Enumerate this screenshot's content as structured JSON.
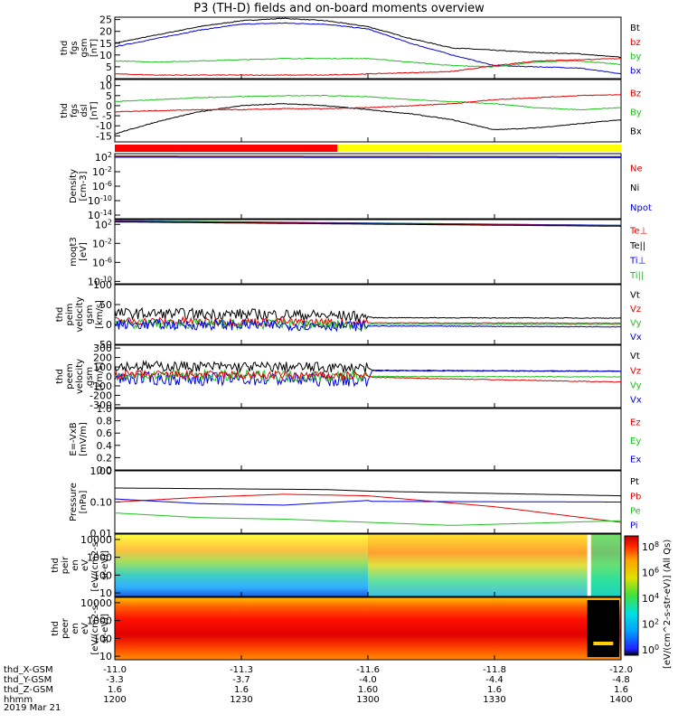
{
  "title": "P3 (TH-D) fields and on-board moments overview",
  "date_label": "2019 Mar 21",
  "colorbar_label": "[eV/(cm^2-s-str-eV)] (All Qs)",
  "colorbar_ticks": [
    "10^8",
    "10^6",
    "10^4",
    "10^2",
    "10^0"
  ],
  "colors": {
    "black": "#000000",
    "red": "#e00000",
    "green": "#20c020",
    "blue": "#0000e0"
  },
  "chart_data": {
    "type": "line",
    "x_time_labels": [
      "1200",
      "1230",
      "1300",
      "1330",
      "1400"
    ],
    "footer": [
      {
        "name": "thd_X-GSM",
        "values": [
          "-11.0",
          "-11.3",
          "-11.6",
          "-11.8",
          "-12.0"
        ]
      },
      {
        "name": "thd_Y-GSM",
        "values": [
          "-3.3",
          "-3.7",
          "-4.0",
          "-4.4",
          "-4.8"
        ]
      },
      {
        "name": "thd_Z-GSM",
        "values": [
          "1.6",
          "1.6",
          "1.60",
          "1.6",
          "1.6"
        ]
      },
      {
        "name": "hhmm",
        "values": [
          "1200",
          "1230",
          "1300",
          "1330",
          "1400"
        ]
      }
    ],
    "panels": [
      {
        "id": "fgs-mag",
        "ylabel": [
          "thd",
          "fgs",
          "gsm",
          "[nT]"
        ],
        "yticks": [
          "25",
          "20",
          "15",
          "10",
          "5",
          "0"
        ],
        "scale": "linear",
        "ylim": [
          0,
          26
        ],
        "legend": [
          {
            "name": "Bt",
            "color": "#000000"
          },
          {
            "name": "bz",
            "color": "#e00000"
          },
          {
            "name": "by",
            "color": "#20c020"
          },
          {
            "name": "bx",
            "color": "#0000e0"
          }
        ],
        "series": [
          {
            "name": "Bt",
            "color": "#000000",
            "x": [
              1200,
              1210,
              1220,
              1230,
              1240,
              1250,
              1300,
              1310,
              1320,
              1330,
              1340,
              1350,
              1400
            ],
            "y": [
              15,
              18.5,
              22,
              24.5,
              25.5,
              24.5,
              22,
              17,
              13,
              12,
              11,
              10.5,
              9
            ]
          },
          {
            "name": "bx",
            "color": "#0000e0",
            "x": [
              1200,
              1210,
              1220,
              1230,
              1240,
              1250,
              1300,
              1310,
              1320,
              1330,
              1340,
              1350,
              1400
            ],
            "y": [
              13.5,
              17,
              20.5,
              23,
              23.5,
              23,
              21,
              15,
              10,
              5.5,
              5,
              4.5,
              2
            ]
          },
          {
            "name": "by",
            "color": "#20c020",
            "x": [
              1200,
              1210,
              1220,
              1230,
              1240,
              1250,
              1300,
              1310,
              1320,
              1330,
              1340,
              1350,
              1400
            ],
            "y": [
              7.5,
              7,
              7.5,
              8,
              8.5,
              8.5,
              8.5,
              7,
              5.5,
              5,
              7,
              7.5,
              6
            ]
          },
          {
            "name": "bz",
            "color": "#e00000",
            "x": [
              1200,
              1210,
              1220,
              1230,
              1240,
              1250,
              1300,
              1310,
              1320,
              1330,
              1340,
              1350,
              1400
            ],
            "y": [
              2,
              1.5,
              1.5,
              1.5,
              1.5,
              1.5,
              2,
              2.5,
              3,
              5.5,
              7.5,
              8,
              8.5
            ]
          }
        ]
      },
      {
        "id": "fgs-dsl",
        "ylabel": [
          "thd",
          "fgs",
          "dsl",
          "[nT]"
        ],
        "yticks": [
          "10",
          "5",
          "0",
          "-5",
          "-10",
          "-15"
        ],
        "scale": "linear",
        "ylim": [
          -18,
          13
        ],
        "legend": [
          {
            "name": "Bz",
            "color": "#e00000"
          },
          {
            "name": "By",
            "color": "#20c020"
          },
          {
            "name": "Bx",
            "color": "#000000"
          }
        ],
        "series": [
          {
            "name": "Bx",
            "color": "#000000",
            "x": [
              1200,
              1210,
              1220,
              1230,
              1240,
              1250,
              1300,
              1310,
              1320,
              1330,
              1340,
              1350,
              1400
            ],
            "y": [
              -14,
              -8,
              -3,
              0,
              1,
              0,
              -2,
              -4,
              -7,
              -12,
              -11,
              -9,
              -7
            ]
          },
          {
            "name": "By",
            "color": "#20c020",
            "x": [
              1200,
              1210,
              1220,
              1230,
              1240,
              1250,
              1300,
              1310,
              1320,
              1330,
              1340,
              1350,
              1400
            ],
            "y": [
              2,
              3,
              4,
              4.5,
              5,
              5,
              4.5,
              3,
              2,
              1,
              -1,
              -2,
              -1
            ]
          },
          {
            "name": "Bz",
            "color": "#e00000",
            "x": [
              1200,
              1210,
              1220,
              1230,
              1240,
              1250,
              1300,
              1310,
              1320,
              1330,
              1340,
              1350,
              1400
            ],
            "y": [
              -3,
              -2.5,
              -2,
              -2,
              -1.5,
              -1.5,
              -1,
              0,
              1,
              3,
              4,
              5,
              5.5
            ]
          }
        ]
      },
      {
        "id": "density",
        "ylabel": [
          "Density",
          "[cm-3]"
        ],
        "yticks": [
          "10^2",
          "10^-2",
          "10^-6",
          "10^-10",
          "10^-14"
        ],
        "scale": "log",
        "ylim": [
          -15,
          3
        ],
        "legend": [
          {
            "name": "Ne",
            "color": "#e00000"
          },
          {
            "name": "Ni",
            "color": "#000000"
          },
          {
            "name": "Npot",
            "color": "#0000e0"
          }
        ],
        "series": [
          {
            "name": "Ni",
            "color": "#000000",
            "x": [
              1200,
              1400
            ],
            "y": [
              2.3,
              2.2
            ]
          },
          {
            "name": "Ne",
            "color": "#e00000",
            "x": [
              1200,
              1400
            ],
            "y": [
              2.2,
              2.1
            ]
          },
          {
            "name": "Npot",
            "color": "#0000e0",
            "x": [
              1200,
              1400
            ],
            "y": [
              2.0,
              1.9
            ]
          }
        ]
      },
      {
        "id": "temp",
        "ylabel": [
          "moqt3",
          "[eV]"
        ],
        "yticks": [
          "10^2",
          "10^-2",
          "10^-6",
          "10^-10"
        ],
        "scale": "log",
        "ylim": [
          -10.5,
          3
        ],
        "legend": [
          {
            "name": "Te⊥",
            "color": "#e00000"
          },
          {
            "name": "Te||",
            "color": "#000000"
          },
          {
            "name": "Ti⊥",
            "color": "#0000e0"
          },
          {
            "name": "Ti||",
            "color": "#20c020"
          }
        ],
        "series": [
          {
            "name": "Ti||",
            "color": "#20c020",
            "x": [
              1200,
              1400
            ],
            "y": [
              2.8,
              1.8
            ]
          },
          {
            "name": "Ti⊥",
            "color": "#0000e0",
            "x": [
              1200,
              1400
            ],
            "y": [
              2.7,
              1.8
            ]
          },
          {
            "name": "Te⊥",
            "color": "#e00000",
            "x": [
              1200,
              1400
            ],
            "y": [
              2.6,
              1.7
            ]
          },
          {
            "name": "Te||",
            "color": "#000000",
            "x": [
              1200,
              1400
            ],
            "y": [
              2.5,
              1.6
            ]
          }
        ]
      },
      {
        "id": "peim-vel",
        "ylabel": [
          "thd",
          "peim",
          "velocity",
          "gsm",
          "[km/s]"
        ],
        "yticks": [
          "100",
          "50",
          "0",
          "-50"
        ],
        "scale": "linear",
        "ylim": [
          -50,
          100
        ],
        "legend": [
          {
            "name": "Vt",
            "color": "#000000"
          },
          {
            "name": "Vz",
            "color": "#e00000"
          },
          {
            "name": "Vy",
            "color": "#20c020"
          },
          {
            "name": "Vx",
            "color": "#0000e0"
          }
        ],
        "series": [
          {
            "name": "Vt",
            "color": "#000000",
            "x": [
              1200,
              1240,
              1300,
              1301,
              1400
            ],
            "y": [
              28,
              25,
              20,
              17,
              16
            ],
            "noise": 14,
            "noise_until": 1300
          },
          {
            "name": "Vz",
            "color": "#e00000",
            "x": [
              1200,
              1240,
              1300,
              1301,
              1400
            ],
            "y": [
              8,
              6,
              4,
              4,
              3
            ],
            "noise": 11,
            "noise_until": 1300
          },
          {
            "name": "Vy",
            "color": "#20c020",
            "x": [
              1200,
              1240,
              1300,
              1301,
              1400
            ],
            "y": [
              2,
              0,
              -2,
              0,
              0
            ],
            "noise": 12,
            "noise_until": 1300
          },
          {
            "name": "Vx",
            "color": "#0000e0",
            "x": [
              1200,
              1240,
              1300,
              1301,
              1400
            ],
            "y": [
              0,
              -2,
              -4,
              -4,
              -6
            ],
            "noise": 13,
            "noise_until": 1300
          }
        ]
      },
      {
        "id": "peem-vel",
        "ylabel": [
          "thd",
          "peem",
          "velocity",
          "gsm",
          "[km/s]"
        ],
        "yticks": [
          "300",
          "200",
          "100",
          "0",
          "-100",
          "-200",
          "-300"
        ],
        "scale": "linear",
        "ylim": [
          -330,
          330
        ],
        "legend": [
          {
            "name": "Vt",
            "color": "#000000"
          },
          {
            "name": "Vz",
            "color": "#e00000"
          },
          {
            "name": "Vy",
            "color": "#20c020"
          },
          {
            "name": "Vx",
            "color": "#0000e0"
          }
        ],
        "series": [
          {
            "name": "Vt",
            "color": "#000000",
            "x": [
              1200,
              1240,
              1300,
              1301,
              1400
            ],
            "y": [
              110,
              100,
              90,
              65,
              55
            ],
            "noise": 55,
            "noise_until": 1300
          },
          {
            "name": "Vx",
            "color": "#0000e0",
            "x": [
              1200,
              1240,
              1300,
              1301,
              1400
            ],
            "y": [
              -20,
              -30,
              -40,
              60,
              55
            ],
            "noise": 70,
            "noise_until": 1300
          },
          {
            "name": "Vy",
            "color": "#20c020",
            "x": [
              1200,
              1240,
              1300,
              1301,
              1400
            ],
            "y": [
              10,
              5,
              0,
              0,
              -5
            ],
            "noise": 60,
            "noise_until": 1300
          },
          {
            "name": "Vz",
            "color": "#e00000",
            "x": [
              1200,
              1240,
              1300,
              1301,
              1400
            ],
            "y": [
              20,
              10,
              5,
              -10,
              -60
            ],
            "noise": 45,
            "noise_until": 1300
          }
        ]
      },
      {
        "id": "efield",
        "ylabel": [
          "E=-VxB",
          "[mV/m]"
        ],
        "yticks": [
          "1.0",
          "0.8",
          "0.6",
          "0.4",
          "0.2",
          "0.0"
        ],
        "scale": "linear",
        "ylim": [
          0,
          1
        ],
        "legend": [
          {
            "name": "Ez",
            "color": "#e00000"
          },
          {
            "name": "Ey",
            "color": "#20c020"
          },
          {
            "name": "Ex",
            "color": "#0000e0"
          }
        ],
        "series": []
      },
      {
        "id": "pressure",
        "ylabel": [
          "Pressure",
          "[nPa]"
        ],
        "yticks": [
          "1.00",
          "0.10",
          "0.01"
        ],
        "scale": "log",
        "ylim": [
          -2,
          0
        ],
        "legend": [
          {
            "name": "Pt",
            "color": "#000000"
          },
          {
            "name": "Pb",
            "color": "#e00000"
          },
          {
            "name": "Pe",
            "color": "#20c020"
          },
          {
            "name": "Pi",
            "color": "#0000e0"
          }
        ],
        "series": [
          {
            "name": "Pt",
            "color": "#000000",
            "x": [
              1200,
              1250,
              1300,
              1400
            ],
            "y": [
              -0.55,
              -0.6,
              -0.65,
              -0.8
            ]
          },
          {
            "name": "Pb",
            "color": "#e00000",
            "x": [
              1200,
              1220,
              1240,
              1300,
              1330,
              1400
            ],
            "y": [
              -1.0,
              -0.85,
              -0.75,
              -0.8,
              -1.15,
              -1.65
            ]
          },
          {
            "name": "Pi",
            "color": "#0000e0",
            "x": [
              1200,
              1220,
              1240,
              1300,
              1301,
              1400
            ],
            "y": [
              -0.9,
              -1.05,
              -1.1,
              -0.95,
              -0.98,
              -1.0
            ]
          },
          {
            "name": "Pe",
            "color": "#20c020",
            "x": [
              1200,
              1220,
              1240,
              1300,
              1320,
              1400
            ],
            "y": [
              -1.35,
              -1.5,
              -1.55,
              -1.65,
              -1.75,
              -1.6
            ]
          }
        ]
      },
      {
        "id": "peir-spec",
        "type": "heatmap",
        "ylabel": [
          "thd",
          "peir",
          "en",
          "eV",
          "[eV/(cm2-s-",
          "sr-eV)]"
        ],
        "yticks": [
          "10000",
          "1000",
          "100",
          "10"
        ],
        "scale": "log",
        "ylim": [
          0.8,
          4.3
        ],
        "series": []
      },
      {
        "id": "peer-spec",
        "type": "heatmap",
        "ylabel": [
          "thd",
          "peer",
          "en",
          "eV",
          "[eV/(cm2-s-",
          "sr-eV)]"
        ],
        "yticks": [
          "10000",
          "1000",
          "100",
          "10"
        ],
        "scale": "log",
        "ylim": [
          0.8,
          4.3
        ],
        "series": []
      }
    ]
  }
}
